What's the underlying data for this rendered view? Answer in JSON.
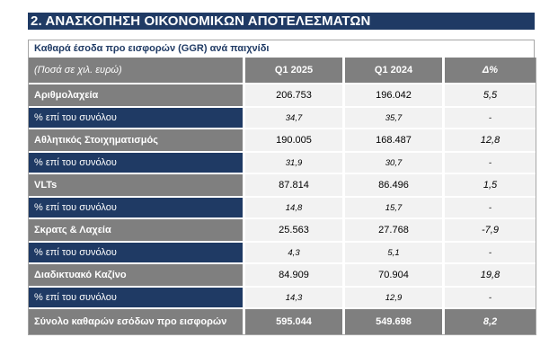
{
  "section_title": "2. ΑΝΑΣΚΟΠΗΣΗ ΟΙΚΟΝΟΜΙΚΩΝ ΑΠΟΤΕΛΕΣΜΑΤΩΝ",
  "table": {
    "subtitle": "Καθαρά έσοδα προ εισφορών (GGR) ανά παιχνίδι",
    "header": {
      "units": "(Ποσά σε χιλ. ευρώ)",
      "col1": "Q1 2025",
      "col2": "Q1 2024",
      "col3": "Δ%"
    },
    "rows": [
      {
        "label": "Αριθμολαχεία",
        "q1_2025": "206.753",
        "q1_2024": "196.042",
        "delta": "5,5",
        "share_label": "% επί του συνόλου",
        "share_2025": "34,7",
        "share_2024": "35,7",
        "share_delta": "-"
      },
      {
        "label": "Αθλητικός Στοιχηματισμός",
        "q1_2025": "190.005",
        "q1_2024": "168.487",
        "delta": "12,8",
        "share_label": "% επί του συνόλου",
        "share_2025": "31,9",
        "share_2024": "30,7",
        "share_delta": "-"
      },
      {
        "label": "VLTs",
        "q1_2025": "87.814",
        "q1_2024": "86.496",
        "delta": "1,5",
        "share_label": "% επί του συνόλου",
        "share_2025": "14,8",
        "share_2024": "15,7",
        "share_delta": "-"
      },
      {
        "label": "Σκρατς & Λαχεία",
        "q1_2025": "25.563",
        "q1_2024": "27.768",
        "delta": "-7,9",
        "share_label": "% επί του συνόλου",
        "share_2025": "4,3",
        "share_2024": "5,1",
        "share_delta": "-"
      },
      {
        "label": "Διαδικτυακό Καζίνο",
        "q1_2025": "84.909",
        "q1_2024": "70.904",
        "delta": "19,8",
        "share_label": "% επί του συνόλου",
        "share_2025": "14,3",
        "share_2024": "12,9",
        "share_delta": "-"
      }
    ],
    "total": {
      "label": "Σύνολο καθαρών εσόδων προ εισφορών",
      "q1_2025": "595.044",
      "q1_2024": "549.698",
      "delta": "8,2"
    },
    "colors": {
      "navy": "#1f3a64",
      "gray": "#7f7f7f",
      "light": "#f2f2f2"
    }
  }
}
